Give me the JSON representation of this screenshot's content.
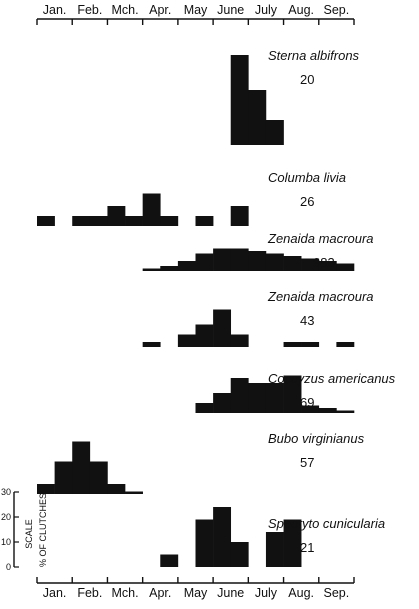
{
  "chart_data": {
    "type": "bar",
    "months": [
      "Jan.",
      "Feb.",
      "Mch.",
      "Apr.",
      "May",
      "June",
      "July",
      "Aug.",
      "Sep."
    ],
    "bins_per_month": 2,
    "value_unit": "% OF CLUTCHES",
    "scale": {
      "label": "SCALE",
      "unit_label": "% OF CLUTCHES",
      "ticks": [
        0,
        10,
        20,
        30
      ]
    },
    "series": [
      {
        "name": "Sterna albifrons",
        "n": "20",
        "values": [
          0,
          0,
          0,
          0,
          0,
          0,
          0,
          0,
          0,
          0,
          0,
          36,
          22,
          10,
          0,
          0,
          0,
          0
        ]
      },
      {
        "name": "Columba livia",
        "n": "26",
        "values": [
          4,
          0,
          4,
          4,
          8,
          4,
          13,
          4,
          0,
          4,
          0,
          8,
          0,
          0,
          0,
          0,
          0,
          0
        ]
      },
      {
        "name": "Zenaida macroura",
        "n": "983",
        "values": [
          0,
          0,
          0,
          0,
          0,
          0,
          1,
          2,
          4,
          7,
          9,
          9,
          8,
          7,
          6,
          5,
          4,
          3
        ]
      },
      {
        "name": "Zenaida macroura",
        "n": "43",
        "values": [
          0,
          0,
          0,
          0,
          0,
          0,
          2,
          0,
          5,
          9,
          15,
          5,
          0,
          0,
          2,
          2,
          0,
          2
        ]
      },
      {
        "name": "Coccyzus americanus",
        "n": "69",
        "values": [
          0,
          0,
          0,
          0,
          0,
          0,
          0,
          0,
          0,
          4,
          8,
          14,
          12,
          12,
          15,
          3,
          2,
          1
        ]
      },
      {
        "name": "Bubo virginianus",
        "n": "57",
        "values": [
          4,
          13,
          21,
          13,
          4,
          1,
          0,
          0,
          0,
          0,
          0,
          0,
          0,
          0,
          0,
          0,
          0,
          0
        ]
      },
      {
        "name": "Speotyto cunicularia",
        "n": "21",
        "values": [
          0,
          0,
          0,
          0,
          0,
          0,
          0,
          5,
          0,
          19,
          24,
          10,
          0,
          14,
          19,
          0,
          0,
          0
        ]
      }
    ]
  }
}
